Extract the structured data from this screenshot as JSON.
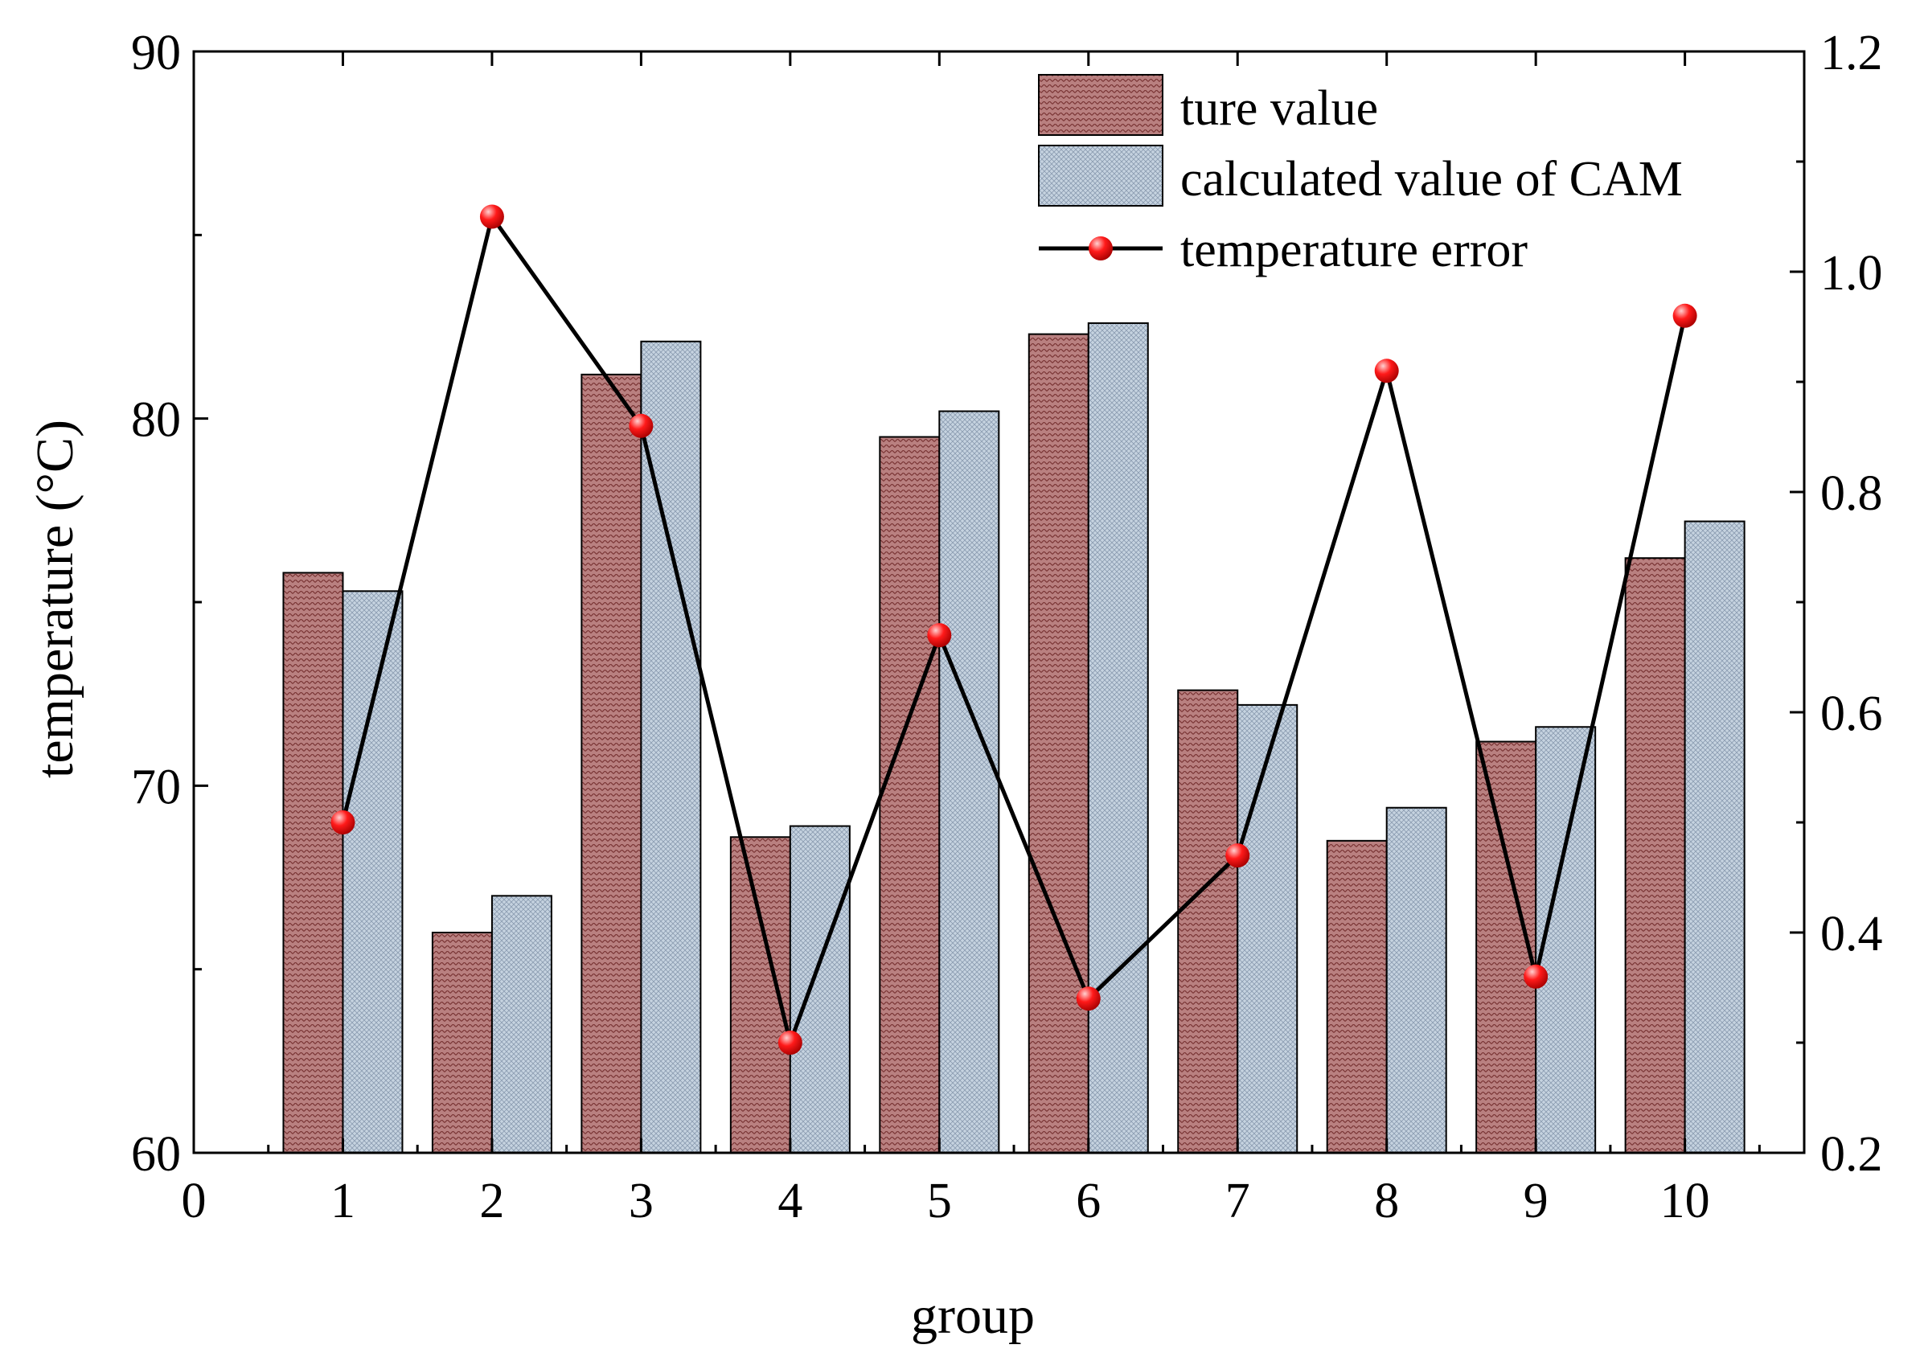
{
  "chart_data": {
    "type": "bar",
    "categories": [
      1,
      2,
      3,
      4,
      5,
      6,
      7,
      8,
      9,
      10
    ],
    "series": [
      {
        "name": "ture value",
        "kind": "bar",
        "axis": "left",
        "values": [
          75.8,
          66.0,
          81.2,
          68.6,
          79.5,
          82.3,
          72.6,
          68.5,
          71.2,
          76.2
        ]
      },
      {
        "name": "calculated value of CAM",
        "kind": "bar",
        "axis": "left",
        "values": [
          75.3,
          67.0,
          82.1,
          68.9,
          80.2,
          82.6,
          72.2,
          69.4,
          71.6,
          77.2
        ]
      },
      {
        "name": "temperature error",
        "kind": "line",
        "axis": "right",
        "values": [
          0.5,
          1.05,
          0.86,
          0.3,
          0.67,
          0.34,
          0.47,
          0.91,
          0.36,
          0.96
        ]
      }
    ],
    "xlabel": "group",
    "ylabel": "temperature (°C)",
    "y2label": "",
    "xlim": [
      0,
      10.8
    ],
    "ylim": [
      60,
      90
    ],
    "y2lim": [
      0.2,
      1.2
    ],
    "xticks": [
      "0",
      "1",
      "2",
      "3",
      "4",
      "5",
      "6",
      "7",
      "8",
      "9",
      "10"
    ],
    "yticks": [
      "60",
      "70",
      "80",
      "90"
    ],
    "y2ticks": [
      "0.2",
      "0.4",
      "0.6",
      "0.8",
      "1.0",
      "1.2"
    ],
    "legend_position": "top-right",
    "grid": false,
    "colors": {
      "bar1_fill": "#b98080",
      "bar1_hatch": "#7a3535",
      "bar2_fill": "#c6d3e0",
      "bar2_hatch": "#8a9bb0",
      "line": "#000000",
      "marker": "#ff1a1a",
      "marker_highlight": "#ffd0d0"
    }
  }
}
